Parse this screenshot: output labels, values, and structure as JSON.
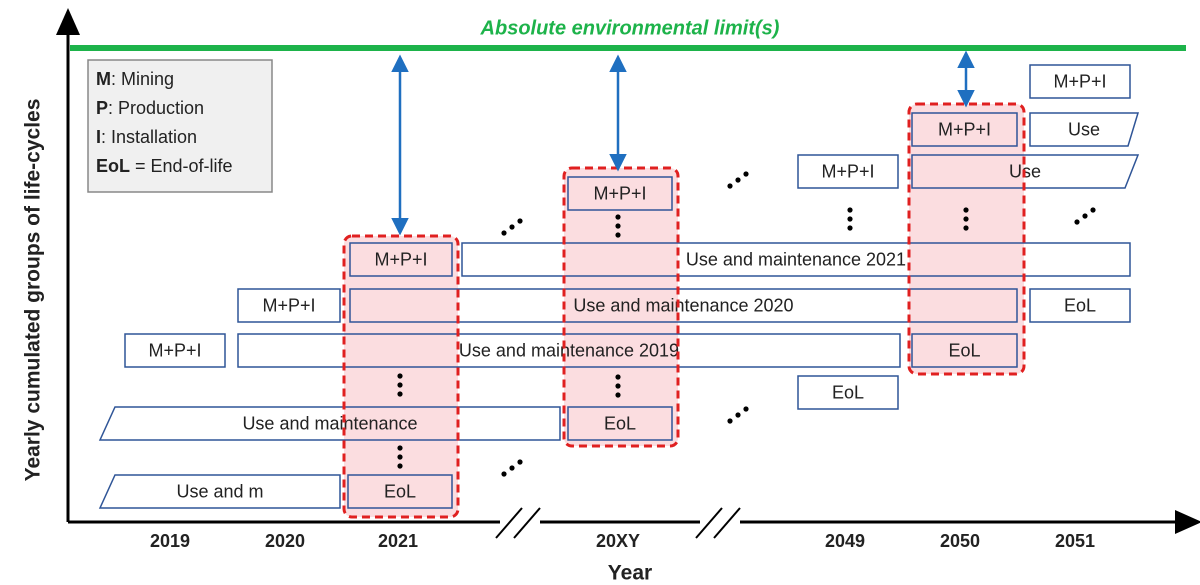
{
  "limit_label": "Absolute environmental limit(s)",
  "y_axis_label": "Yearly cumulated groups of life-cycles",
  "x_axis": {
    "title": "Year",
    "ticks": [
      "2019",
      "2020",
      "2021",
      "20XY",
      "2049",
      "2050",
      "2051"
    ]
  },
  "legend": [
    {
      "key": "M",
      "text": ": Mining"
    },
    {
      "key": "P",
      "text": ": Production"
    },
    {
      "key": "I",
      "text": ": Installation"
    },
    {
      "key": "EoL",
      "text": " = End-of-life"
    }
  ],
  "boxes": [
    {
      "label": "Use and m"
    },
    {
      "label": "EoL"
    },
    {
      "label": "Use and maintenance"
    },
    {
      "label": "EoL"
    },
    {
      "label": "M+P+I"
    },
    {
      "label": "Use and maintenance 2019"
    },
    {
      "label": "EoL"
    },
    {
      "label": "M+P+I"
    },
    {
      "label": "Use and maintenance 2020"
    },
    {
      "label": "EoL"
    },
    {
      "label": "M+P+I"
    },
    {
      "label": "Use and maintenance 2021"
    },
    {
      "label": "M+P+I"
    },
    {
      "label": "M+P+I"
    },
    {
      "label": "EoL"
    },
    {
      "label": "M+P+I"
    },
    {
      "label": "Use"
    },
    {
      "label": "M+P+I"
    },
    {
      "label": "Use"
    }
  ]
}
